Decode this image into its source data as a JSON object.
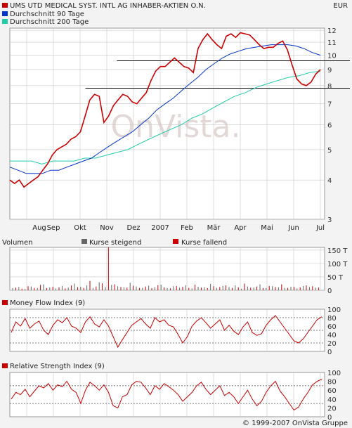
{
  "currency": "EUR",
  "watermark": "OnVista.",
  "copyright": "© 1999-2007 OnVista Gruppe",
  "colors": {
    "background": "#f3f3f3",
    "plot_bg": "#ffffff",
    "grid": "#c8c8c8",
    "price": "#cc0000",
    "ma90": "#0033cc",
    "ma200": "#22ccaa",
    "volume_up": "#666666",
    "volume_down": "#cc0000",
    "indicator": "#cc0000",
    "trendline": "#000000"
  },
  "chart_data": [
    {
      "type": "line",
      "panel": "price",
      "title": "",
      "x_tick_labels": [
        "Aug",
        "Sep",
        "Okt",
        "Nov",
        "Dez",
        "2007",
        "Feb",
        "Mär",
        "Apr",
        "Mai",
        "Jun",
        "Jul"
      ],
      "y_tick_labels": [
        "12",
        "11",
        "10",
        "9",
        "8",
        "7",
        "6",
        "5",
        "4",
        "3"
      ],
      "y_scale": "log",
      "ylim": [
        3,
        12.2
      ],
      "grid": true,
      "legend": "top-left",
      "series": [
        {
          "name": "UMS UTD MEDICAL SYST. INTL AG INHABER-AKTIEN O.N.",
          "color": "#cc0000",
          "values": [
            4.0,
            3.9,
            4.0,
            3.8,
            3.9,
            4.0,
            4.1,
            4.3,
            4.5,
            4.8,
            5.0,
            5.1,
            5.2,
            5.4,
            5.5,
            5.7,
            6.4,
            7.2,
            7.5,
            7.4,
            6.1,
            6.4,
            6.9,
            7.2,
            7.5,
            7.4,
            7.1,
            7.0,
            7.3,
            7.6,
            8.3,
            8.9,
            9.2,
            9.2,
            9.5,
            9.8,
            9.5,
            9.2,
            9.1,
            8.8,
            10.5,
            11.2,
            11.7,
            11.2,
            10.8,
            10.5,
            11.5,
            11.7,
            11.4,
            11.8,
            11.7,
            11.6,
            11.2,
            10.8,
            10.5,
            10.6,
            10.6,
            10.9,
            11.1,
            10.4,
            9.3,
            8.4,
            8.1,
            8.0,
            8.2,
            8.7,
            9.0
          ]
        },
        {
          "name": "Durchschnitt 90 Tage",
          "color": "#0033cc",
          "values": [
            4.4,
            4.3,
            4.2,
            4.2,
            4.2,
            4.3,
            4.3,
            4.4,
            4.5,
            4.6,
            4.7,
            4.9,
            5.1,
            5.3,
            5.5,
            5.7,
            6.0,
            6.3,
            6.7,
            7.0,
            7.3,
            7.7,
            8.1,
            8.5,
            9.0,
            9.4,
            9.8,
            10.1,
            10.3,
            10.5,
            10.6,
            10.7,
            10.8,
            10.8,
            10.8,
            10.7,
            10.5,
            10.2,
            10.0
          ]
        },
        {
          "name": "Durchschnitt 200 Tage",
          "color": "#22ccaa",
          "values": [
            4.6,
            4.6,
            4.6,
            4.5,
            4.6,
            4.6,
            4.6,
            4.7,
            4.7,
            4.8,
            4.9,
            5.0,
            5.2,
            5.4,
            5.6,
            5.8,
            6.0,
            6.3,
            6.5,
            6.8,
            7.1,
            7.4,
            7.6,
            7.9,
            8.1,
            8.3,
            8.5,
            8.6,
            8.8,
            8.9
          ]
        }
      ],
      "trendlines": [
        {
          "y": 9.6,
          "x_start_frac": 0.34,
          "x_end_frac": 1.0
        },
        {
          "y": 7.85,
          "x_start_frac": 0.24,
          "x_end_frac": 1.0
        }
      ]
    },
    {
      "type": "bar",
      "panel": "volume",
      "title": "Volumen",
      "legend": "top",
      "legend_entries": [
        "Kurse steigend",
        "Kurse fallend"
      ],
      "y_tick_labels": [
        "150 T",
        "100 T",
        "50 T",
        "0"
      ],
      "ylim": [
        0,
        160000
      ],
      "values_up": [
        8000,
        12000,
        5000,
        14000,
        9000,
        22000,
        11000,
        7000,
        16000,
        10000,
        25000,
        13000,
        18000,
        9000,
        30000,
        12000,
        20000,
        15000,
        11000,
        28000,
        14000,
        9000,
        17000,
        12000,
        21000,
        8000,
        15000,
        10000,
        19000,
        7000,
        13000,
        11000,
        24000,
        9000,
        16000,
        12000,
        18000,
        6000,
        14000,
        10000,
        22000,
        8000,
        15000,
        11000,
        9000,
        13000,
        7000,
        16000,
        12000,
        10000
      ],
      "values_down": [
        10000,
        6000,
        15000,
        9000,
        20000,
        8000,
        13000,
        11000,
        7000,
        18000,
        12000,
        9000,
        35000,
        14000,
        26000,
        160000,
        22000,
        12000,
        10000,
        17000,
        9000,
        14000,
        8000,
        19000,
        11000,
        7000,
        16000,
        13000,
        9000,
        21000,
        10000,
        8000,
        15000,
        12000,
        18000,
        9000,
        11000,
        25000,
        10000,
        14000,
        8000,
        16000,
        12000,
        22000,
        9000,
        13000,
        11000,
        18000,
        15000,
        10000
      ]
    },
    {
      "type": "line",
      "panel": "mfi",
      "title": "Money Flow Index (9)",
      "y_tick_labels": [
        "100",
        "80",
        "60",
        "40",
        "20",
        "0"
      ],
      "ylim": [
        0,
        100
      ],
      "reference_lines": [
        80,
        50,
        20
      ],
      "series": [
        {
          "name": "Money Flow Index (9)",
          "color": "#cc0000",
          "values": [
            45,
            70,
            60,
            78,
            55,
            65,
            72,
            50,
            40,
            62,
            75,
            68,
            80,
            60,
            55,
            45,
            70,
            82,
            65,
            58,
            75,
            60,
            35,
            10,
            28,
            45,
            62,
            70,
            78,
            65,
            55,
            80,
            70,
            75,
            62,
            58,
            40,
            20,
            35,
            60,
            72,
            80,
            68,
            55,
            65,
            75,
            50,
            62,
            48,
            40,
            58,
            70,
            45,
            38,
            42,
            62,
            75,
            85,
            70,
            55,
            40,
            25,
            20,
            30,
            45,
            60,
            75,
            82
          ]
        }
      ]
    },
    {
      "type": "line",
      "panel": "rsi",
      "title": "Relative Strength Index (9)",
      "y_tick_labels": [
        "100",
        "80",
        "60",
        "40",
        "20",
        "0"
      ],
      "ylim": [
        0,
        100
      ],
      "reference_lines": [
        70,
        30
      ],
      "series": [
        {
          "name": "Relative Strength Index (9)",
          "color": "#cc0000",
          "values": [
            40,
            55,
            50,
            62,
            45,
            58,
            70,
            65,
            75,
            60,
            72,
            68,
            80,
            62,
            55,
            30,
            60,
            78,
            70,
            60,
            72,
            55,
            25,
            20,
            45,
            50,
            72,
            80,
            78,
            65,
            50,
            70,
            62,
            75,
            68,
            60,
            50,
            35,
            45,
            55,
            70,
            78,
            62,
            50,
            60,
            70,
            48,
            55,
            45,
            30,
            45,
            60,
            40,
            25,
            35,
            55,
            70,
            80,
            58,
            45,
            30,
            15,
            22,
            40,
            55,
            72,
            80,
            85
          ]
        }
      ]
    }
  ]
}
